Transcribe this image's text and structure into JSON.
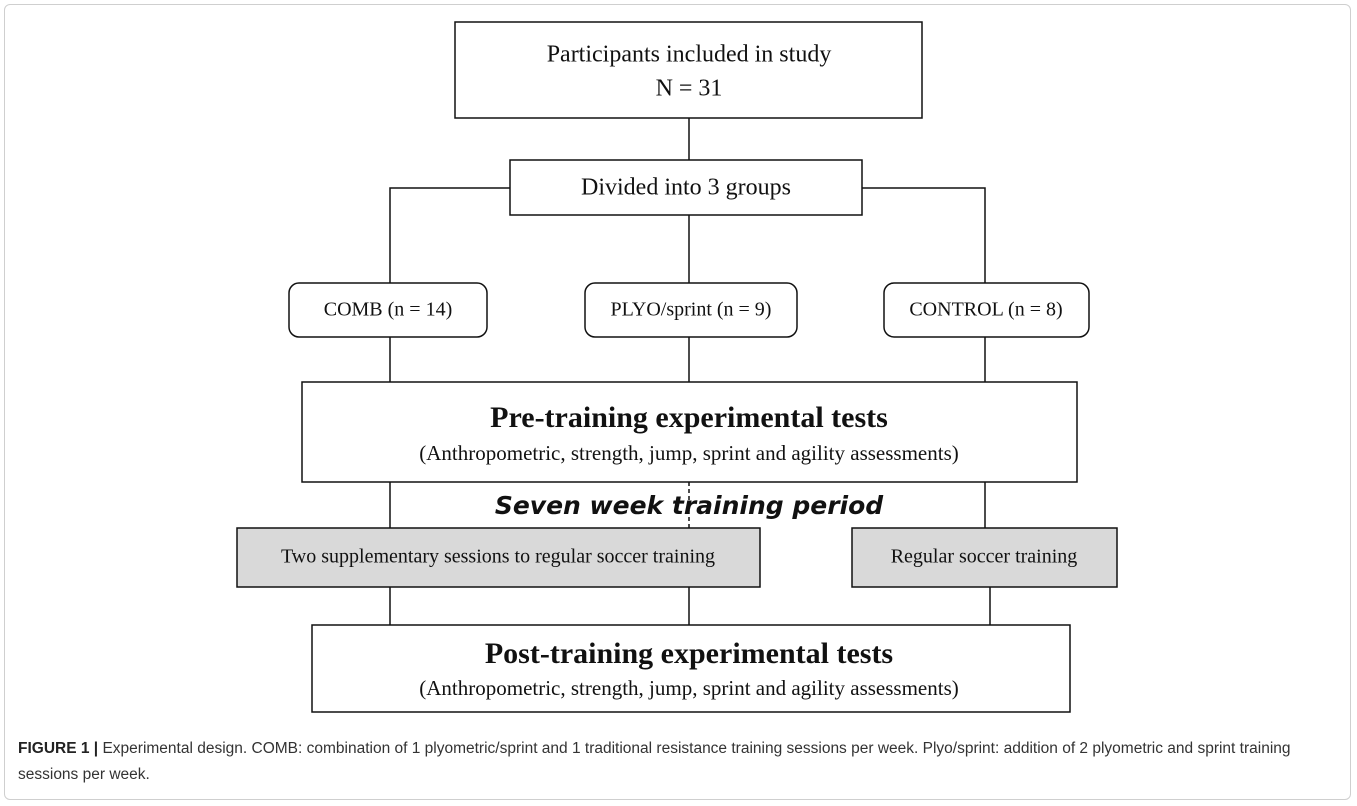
{
  "participants": {
    "title": "Participants included in study",
    "count": "N = 31"
  },
  "division": "Divided into 3 groups",
  "groups": [
    "COMB (n = 14)",
    "PLYO/sprint (n = 9)",
    "CONTROL (n = 8)"
  ],
  "pre_tests": {
    "title": "Pre-training experimental tests",
    "detail": "(Anthropometric, strength, jump, sprint and agility assessments)"
  },
  "period": "Seven week training period",
  "training": [
    "Two supplementary sessions to regular soccer training",
    "Regular soccer training"
  ],
  "post_tests": {
    "title": "Post-training experimental tests",
    "detail": "(Anthropometric, strength, jump, sprint and agility assessments)"
  },
  "caption": {
    "label": "FIGURE 1 |",
    "text": "Experimental design. COMB: combination of 1 plyometric/sprint and 1 traditional resistance training sessions per week. Plyo/sprint: addition of 2 plyometric and sprint training sessions per week."
  }
}
